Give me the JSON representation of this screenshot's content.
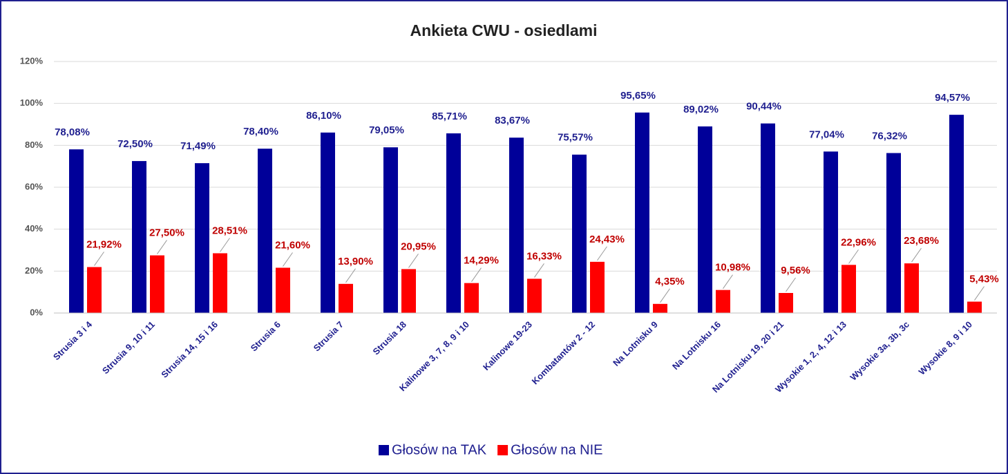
{
  "chart_data": {
    "type": "bar",
    "title": "Ankieta CWU - osiedlami",
    "categories": [
      "Strusia 3 i 4",
      "Strusia 9, 10 i 11",
      "Strusia 14, 15 i 16",
      "Strusia 6",
      "Strusia 7",
      "Strusia 18",
      "Kalinowe 3, 7, 8, 9 i 10",
      "Kalinowe 19-23",
      "Kombatantów 2 - 12",
      "Na Lotnisku 9",
      "Na Lotnisku 16",
      "Na Lotnisku 19, 20 i 21",
      "Wysokie 1, 2, 4, 12 i 13",
      "Wysokie 3a, 3b, 3c",
      "Wysokie 8, 9 i 10"
    ],
    "series": [
      {
        "name": "Głosów na TAK",
        "color": "#000099",
        "values": [
          78.08,
          72.5,
          71.49,
          78.4,
          86.1,
          79.05,
          85.71,
          83.67,
          75.57,
          95.65,
          89.02,
          90.44,
          77.04,
          76.32,
          94.57
        ],
        "value_labels": [
          "78,08%",
          "72,50%",
          "71,49%",
          "78,40%",
          "86,10%",
          "79,05%",
          "85,71%",
          "83,67%",
          "75,57%",
          "95,65%",
          "89,02%",
          "90,44%",
          "77,04%",
          "76,32%",
          "94,57%"
        ]
      },
      {
        "name": "Głosów na NIE",
        "color": "#ff0000",
        "values": [
          21.92,
          27.5,
          28.51,
          21.6,
          13.9,
          20.95,
          14.29,
          16.33,
          24.43,
          4.35,
          10.98,
          9.56,
          22.96,
          23.68,
          5.43
        ],
        "value_labels": [
          "21,92%",
          "27,50%",
          "28,51%",
          "21,60%",
          "13,90%",
          "20,95%",
          "14,29%",
          "16,33%",
          "24,43%",
          "4,35%",
          "10,98%",
          "9,56%",
          "22,96%",
          "23,68%",
          "5,43%"
        ]
      }
    ],
    "ylim": [
      0,
      120
    ],
    "yticks": [
      {
        "value": 0,
        "label": "0%"
      },
      {
        "value": 20,
        "label": "20%"
      },
      {
        "value": 40,
        "label": "40%"
      },
      {
        "value": 60,
        "label": "60%"
      },
      {
        "value": 80,
        "label": "80%"
      },
      {
        "value": 100,
        "label": "100%"
      },
      {
        "value": 120,
        "label": "120%"
      }
    ],
    "grid": true,
    "legend": "bottom"
  }
}
